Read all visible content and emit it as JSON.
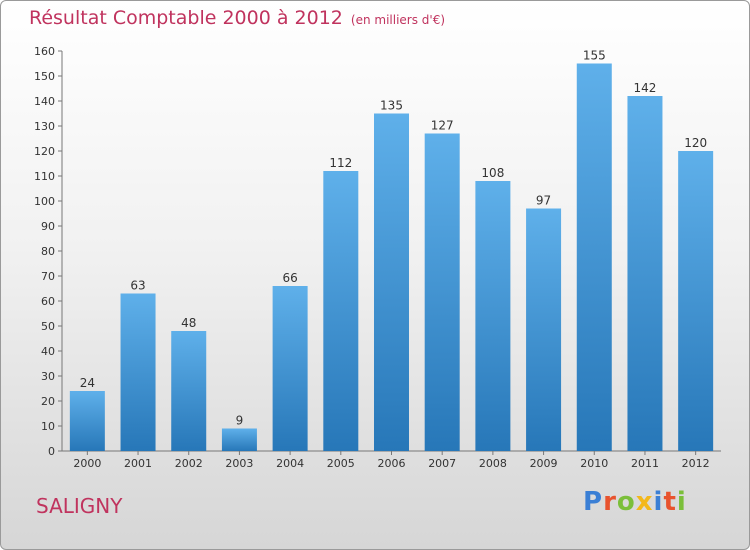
{
  "title": "Résultat Comptable 2000 à 2012",
  "unit": "(en milliers d'€)",
  "commune": "SALIGNY",
  "brand": "Proxiti",
  "brand_colors": [
    "#3a7fd5",
    "#e8532e",
    "#7bbf3a",
    "#f3b81b",
    "#3a7fd5",
    "#e8532e",
    "#7bbf3a"
  ],
  "colors": {
    "accent": "#c0335e",
    "bar_top": "#5fb0ea",
    "bar_bottom": "#2777b8"
  },
  "chart_data": {
    "type": "bar",
    "categories": [
      "2000",
      "2001",
      "2002",
      "2003",
      "2004",
      "2005",
      "2006",
      "2007",
      "2008",
      "2009",
      "2010",
      "2011",
      "2012"
    ],
    "values": [
      24,
      63,
      48,
      9,
      66,
      112,
      135,
      127,
      108,
      97,
      155,
      142,
      120
    ],
    "ylim": [
      0,
      160
    ],
    "yticks": [
      0,
      10,
      20,
      30,
      40,
      50,
      60,
      70,
      80,
      90,
      100,
      110,
      120,
      130,
      140,
      150,
      160
    ],
    "grid": false,
    "legend": "none"
  }
}
